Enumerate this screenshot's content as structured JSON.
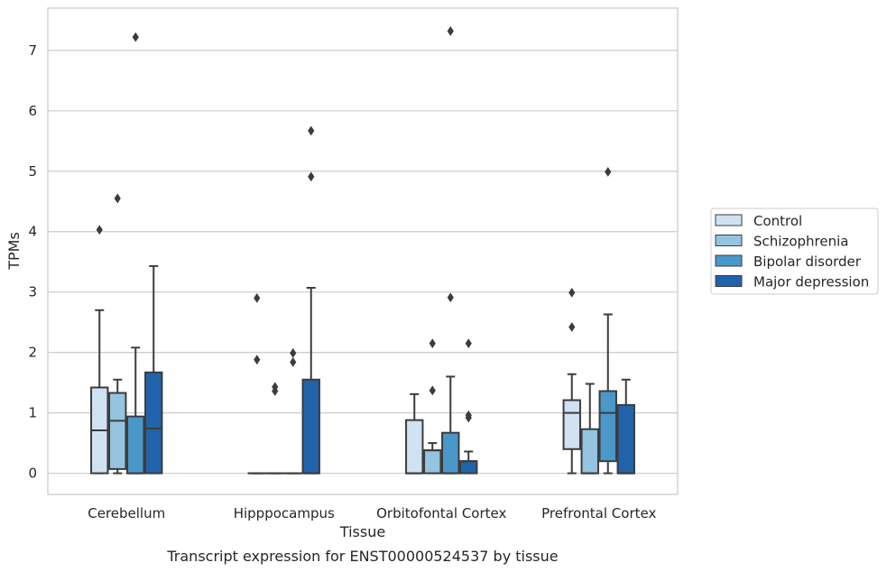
{
  "caption": "Transcript expression for ENST00000524537 by tissue",
  "chart_data": {
    "type": "boxplot",
    "xlabel": "Tissue",
    "ylabel": "TPMs",
    "ylim": [
      -0.35,
      7.7
    ],
    "yticks": [
      0,
      1,
      2,
      3,
      4,
      5,
      6,
      7
    ],
    "grid": "horizontal",
    "legend_position": "right",
    "categories": [
      "Cerebellum",
      "Hipppocampus",
      "Orbitofontal Cortex",
      "Prefrontal Cortex"
    ],
    "series": [
      {
        "name": "Control",
        "color": "#d0e1f2",
        "boxes": [
          {
            "min": 0,
            "q1": 0,
            "median": 0.71,
            "q3": 1.42,
            "max": 2.7,
            "outliers": [
              4.03
            ]
          },
          {
            "min": 0,
            "q1": 0,
            "median": 0,
            "q3": 0,
            "max": 0,
            "outliers": [
              1.88,
              2.9
            ]
          },
          {
            "min": 0,
            "q1": 0,
            "median": 0,
            "q3": 0.88,
            "max": 1.31,
            "outliers": []
          },
          {
            "min": 0,
            "q1": 0.4,
            "median": 1.0,
            "q3": 1.21,
            "max": 1.64,
            "outliers": [
              2.42,
              2.99
            ]
          }
        ]
      },
      {
        "name": "Schizophrenia",
        "color": "#94c4df",
        "boxes": [
          {
            "min": 0,
            "q1": 0.07,
            "median": 0.87,
            "q3": 1.33,
            "max": 1.55,
            "outliers": [
              4.55
            ]
          },
          {
            "min": 0,
            "q1": 0,
            "median": 0,
            "q3": 0,
            "max": 0,
            "outliers": [
              1.36,
              1.43
            ]
          },
          {
            "min": 0,
            "q1": 0,
            "median": 0.38,
            "q3": 0.38,
            "max": 0.5,
            "outliers": [
              1.37,
              2.15
            ]
          },
          {
            "min": 0,
            "q1": 0,
            "median": 0,
            "q3": 0.73,
            "max": 1.48,
            "outliers": []
          }
        ]
      },
      {
        "name": "Bipolar disorder",
        "color": "#4a98c9",
        "boxes": [
          {
            "min": 0,
            "q1": 0,
            "median": 0,
            "q3": 0.94,
            "max": 2.08,
            "outliers": [
              7.22
            ]
          },
          {
            "min": 0,
            "q1": 0,
            "median": 0,
            "q3": 0,
            "max": 0,
            "outliers": [
              1.84,
              1.99
            ]
          },
          {
            "min": 0,
            "q1": 0,
            "median": 0,
            "q3": 0.67,
            "max": 1.6,
            "outliers": [
              2.91,
              7.32
            ]
          },
          {
            "min": 0,
            "q1": 0.2,
            "median": 1.0,
            "q3": 1.36,
            "max": 2.63,
            "outliers": [
              4.99
            ]
          }
        ]
      },
      {
        "name": "Major depression",
        "color": "#2163aa",
        "boxes": [
          {
            "min": 0,
            "q1": 0,
            "median": 0.74,
            "q3": 1.67,
            "max": 3.43,
            "outliers": []
          },
          {
            "min": 0,
            "q1": 0,
            "median": 0,
            "q3": 1.55,
            "max": 3.07,
            "outliers": [
              4.91,
              5.67
            ]
          },
          {
            "min": 0,
            "q1": 0,
            "median": 0.2,
            "q3": 0.2,
            "max": 0.36,
            "outliers": [
              0.92,
              0.96,
              2.15
            ]
          },
          {
            "min": 0,
            "q1": 0,
            "median": 0,
            "q3": 1.13,
            "max": 1.55,
            "outliers": []
          }
        ]
      }
    ]
  }
}
